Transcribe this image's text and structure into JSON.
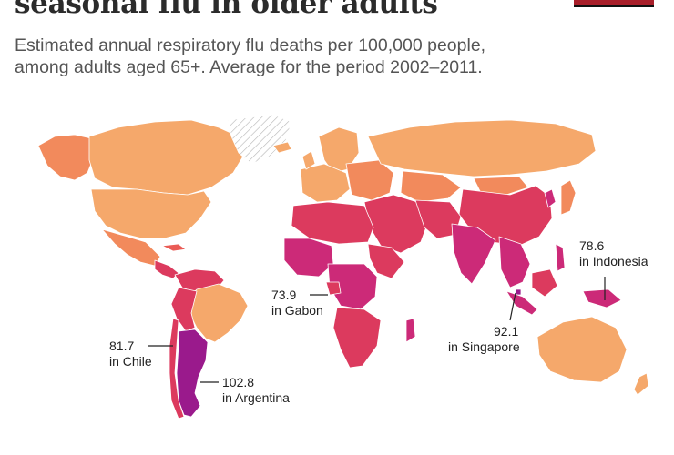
{
  "header": {
    "title": "seasonal flu in older adults",
    "subtitle_line1": "Estimated annual respiratory flu deaths per 100,000 people,",
    "subtitle_line2": "among adults aged 65+. Average for the period 2002–2011."
  },
  "colors": {
    "low": "#f5a86b",
    "mid_low": "#f28a5c",
    "mid": "#ea5b55",
    "mid_high": "#dc3a5e",
    "high": "#cc2a78",
    "very_high": "#9a1a8c",
    "no_data": "hatched",
    "accent_bar": "#a81f2a"
  },
  "annotations": [
    {
      "id": "gabon",
      "value": "73.9",
      "place": "in Gabon"
    },
    {
      "id": "chile",
      "value": "81.7",
      "place": "in Chile"
    },
    {
      "id": "argentina",
      "value": "102.8",
      "place": "in Argentina"
    },
    {
      "id": "singapore",
      "value": "92.1",
      "place": "in Singapore"
    },
    {
      "id": "indonesia",
      "value": "78.6",
      "place": "in Indonesia"
    }
  ]
}
